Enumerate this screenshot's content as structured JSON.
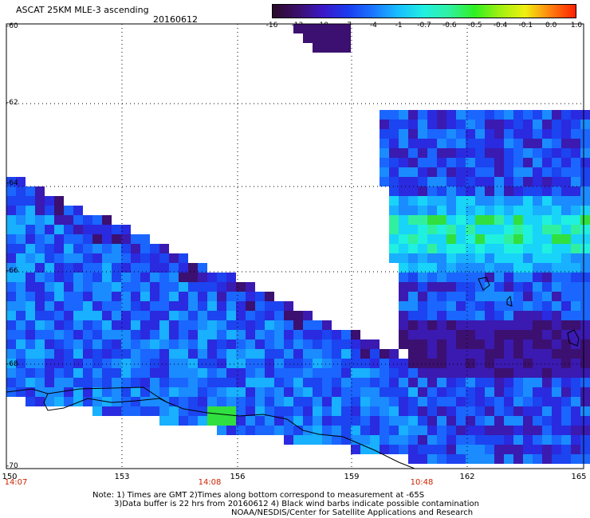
{
  "header": {
    "title": "ASCAT 25KM MLE-3 ascending",
    "date": "20160612"
  },
  "colorbar": {
    "ticks": [
      "-16",
      "-13",
      "-10",
      "-7",
      "-4",
      "-1",
      "-0.7",
      "-0.6",
      "-0.5",
      "-0.4",
      "-0.1",
      "0.0",
      "1.0"
    ],
    "colors": [
      "#2a0a2a",
      "#3c0e6a",
      "#3a18c8",
      "#1a3cf0",
      "#1a78ff",
      "#18c0ff",
      "#20f0e0",
      "#30f0a0",
      "#30f020",
      "#a0f010",
      "#f0f010",
      "#ff8010",
      "#ff2000"
    ]
  },
  "map": {
    "lat_labels": [
      "-60",
      "-62",
      "-64",
      "-66",
      "-68",
      "-70"
    ],
    "lon_labels": [
      "150",
      "153",
      "156",
      "159",
      "162",
      "165"
    ],
    "time_labels": [
      "14:07",
      "14:08",
      "10:48"
    ]
  },
  "footer": {
    "line1": "Note: 1) Times are GMT 2)Times along bottom correspond to measurement at -65S",
    "line2": "3)Data buffer is 22 hrs from 20160612 4) Black wind barbs indicate possible contamination",
    "line3": "NOAA/NESDIS/Center for Satellite Applications and Research"
  }
}
